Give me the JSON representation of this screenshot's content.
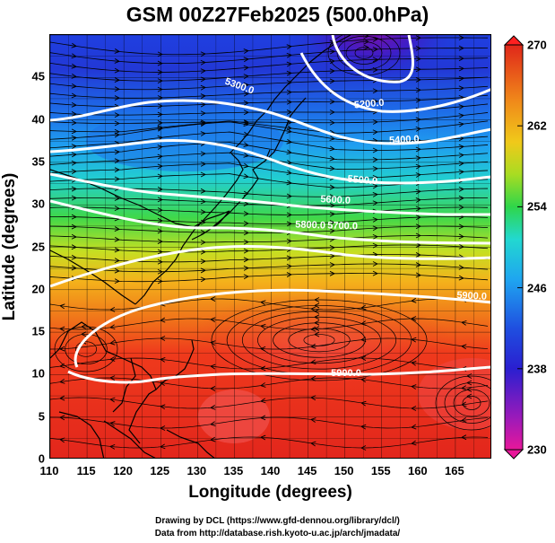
{
  "title": "GSM 00Z27Feb2025 (500.0hPa)",
  "x_axis": {
    "label": "Longitude (degrees)",
    "range": [
      110,
      170
    ],
    "ticks": [
      "110",
      "115",
      "120",
      "125",
      "130",
      "135",
      "140",
      "145",
      "150",
      "155",
      "160",
      "165"
    ]
  },
  "y_axis": {
    "label": "Latitude  (degrees)",
    "range": [
      0,
      50
    ],
    "ticks": [
      "0",
      "5",
      "10",
      "15",
      "20",
      "25",
      "30",
      "35",
      "40",
      "45"
    ]
  },
  "colorbar": {
    "range": [
      230,
      270
    ],
    "labels": [
      "270",
      "262",
      "254",
      "246",
      "238",
      "230"
    ],
    "colors": [
      "#d11fa8",
      "#6a0fb0",
      "#1a2fd8",
      "#1c8cf0",
      "#23d6e0",
      "#2fd65a",
      "#c8e01d",
      "#f6a51a",
      "#f05a1c",
      "#e01a1a"
    ]
  },
  "contours": [
    {
      "label": "5200.0"
    },
    {
      "label": "5300.0"
    },
    {
      "label": "5400.0"
    },
    {
      "label": "5500.0"
    },
    {
      "label": "5600.0"
    },
    {
      "label": "5700.0"
    },
    {
      "label": "5800.0"
    },
    {
      "label": "5900.0"
    },
    {
      "label": "5900.0"
    }
  ],
  "credits": [
    "Drawing by DCL (https://www.gfd-dennou.org/library/dcl/)",
    "Data from http://database.rish.kyoto-u.ac.jp/arch/jmadata/"
  ]
}
